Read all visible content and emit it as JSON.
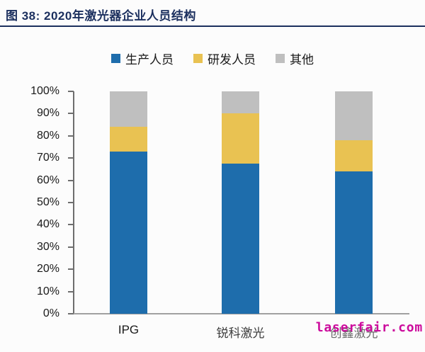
{
  "header": {
    "title": "图 38: 2020年激光器企业人员结构"
  },
  "colors": {
    "title": "#1B2F5E",
    "rule": "#1B2F5E",
    "axis": "#6E6E6E",
    "production_blue": "#1E6DAC",
    "rnd_yellow": "#E9C252",
    "other_gray": "#BFBFBF",
    "watermark_magenta": "#CC0A9C"
  },
  "chart_data": {
    "type": "bar",
    "stacked": true,
    "title": "2020年激光器企业人员结构",
    "categories": [
      "IPG",
      "锐科激光",
      "创鑫激光"
    ],
    "series": [
      {
        "name": "生产人员",
        "color": "#1E6DAC",
        "values": [
          73,
          67.5,
          64
        ]
      },
      {
        "name": "研发人员",
        "color": "#E9C252",
        "values": [
          11,
          22.5,
          14
        ]
      },
      {
        "name": "其他",
        "color": "#BFBFBF",
        "values": [
          16,
          10,
          22
        ]
      }
    ],
    "unit": "%",
    "xlabel": "",
    "ylabel": "",
    "ylim": [
      0,
      100
    ],
    "y_ticks": [
      "0%",
      "10%",
      "20%",
      "30%",
      "40%",
      "50%",
      "60%",
      "70%",
      "80%",
      "90%",
      "100%"
    ],
    "grid": false,
    "legend_position": "top",
    "category_label_colors": [
      "#1a1a1a",
      "#3d3d3d",
      "#6a6a6a"
    ]
  },
  "watermark": {
    "text": "laserfair.com",
    "color": "#CC0A9C"
  }
}
